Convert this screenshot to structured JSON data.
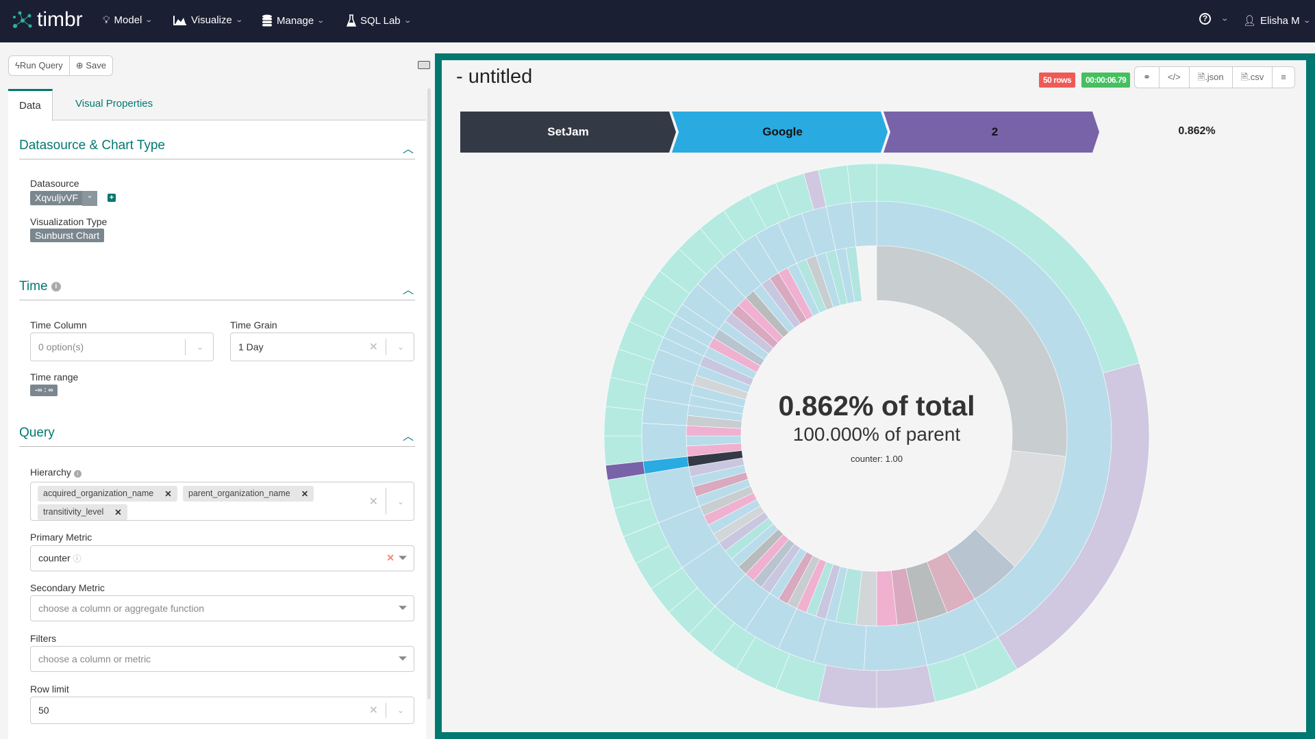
{
  "nav": {
    "brand": "timbr",
    "items": [
      {
        "label": "Model",
        "icon": "lightbulb-icon"
      },
      {
        "label": "Visualize",
        "icon": "area-chart-icon"
      },
      {
        "label": "Manage",
        "icon": "database-icon"
      },
      {
        "label": "SQL Lab",
        "icon": "flask-icon"
      }
    ],
    "user": "Elisha M"
  },
  "toolbar": {
    "run": "Run Query",
    "save": "Save"
  },
  "tabs": {
    "data": "Data",
    "visual": "Visual Properties"
  },
  "sections": {
    "datasource": {
      "title": "Datasource & Chart Type",
      "ds_label": "Datasource",
      "ds_value": "XqvuljvVF",
      "viz_label": "Visualization Type",
      "viz_value": "Sunburst Chart"
    },
    "time": {
      "title": "Time",
      "col_label": "Time Column",
      "col_value": "0 option(s)",
      "grain_label": "Time Grain",
      "grain_value": "1 Day",
      "range_label": "Time range",
      "range_value": "-∞ : ∞"
    },
    "query": {
      "title": "Query",
      "hierarchy_label": "Hierarchy",
      "hierarchy": [
        "acquired_organization_name",
        "parent_organization_name",
        "transitivity_level"
      ],
      "primary_label": "Primary Metric",
      "primary_value": "counter",
      "secondary_label": "Secondary Metric",
      "secondary_placeholder": "choose a column or aggregate function",
      "filters_label": "Filters",
      "filters_placeholder": "choose a column or metric",
      "rowlimit_label": "Row limit",
      "rowlimit_value": "50"
    }
  },
  "chart_header": {
    "title": "- untitled",
    "rows": "50 rows",
    "duration": "00:00:06.79",
    "json": ".json",
    "csv": ".csv"
  },
  "colors": {
    "teal": "#00786f",
    "rows_badge": "#ee5a55",
    "time_badge": "#45bf5f"
  },
  "chart_data": {
    "type": "sunburst",
    "breadcrumb": [
      {
        "label": "SetJam",
        "color": "#343a45"
      },
      {
        "label": "Google",
        "color": "#29aae1"
      },
      {
        "label": "2",
        "color": "#7862a8"
      }
    ],
    "breadcrumb_percent": "0.862%",
    "center": {
      "total": "0.862% of total",
      "parent": "100.000% of parent",
      "metric": "counter: 1.00"
    },
    "total": 116,
    "highlight_unit_start": 84,
    "rings": [
      [
        [
          31,
          "#c8cdd0"
        ],
        [
          12,
          "#dadcde"
        ],
        [
          5,
          "#b8c4d0"
        ],
        [
          3,
          "#dbb0bf"
        ],
        [
          3,
          "#b9bcbc"
        ],
        [
          2,
          "#d8a9bf"
        ],
        [
          2,
          "#f0b0d0"
        ],
        [
          2,
          "#d3d6d8"
        ],
        [
          2,
          "#b2e5df"
        ],
        [
          1,
          "#b9dcea"
        ],
        [
          1,
          "#c9c6e0"
        ],
        [
          1,
          "#b2e5df"
        ],
        [
          1,
          "#f0b0d0"
        ],
        [
          1,
          "#c8cdd0"
        ],
        [
          1,
          "#d8a9bf"
        ],
        [
          1,
          "#b9dcea"
        ],
        [
          1,
          "#c9c6e0"
        ],
        [
          1,
          "#b8c4d0"
        ],
        [
          1,
          "#f0b0d0"
        ],
        [
          1,
          "#b9bcbc"
        ],
        [
          1,
          "#b9dcea"
        ],
        [
          1,
          "#b2e5df"
        ],
        [
          1,
          "#c9c6e0"
        ],
        [
          1,
          "#d3d6d8"
        ],
        [
          1,
          "#b9dcea"
        ],
        [
          1,
          "#f0b0d0"
        ],
        [
          1,
          "#c8cdd0"
        ],
        [
          1,
          "#b9dcea"
        ],
        [
          1,
          "#d8a9bf"
        ],
        [
          1,
          "#b9dcea"
        ],
        [
          1,
          "#c9c6e0"
        ],
        [
          1,
          "#343a45"
        ],
        [
          1,
          "#f0b0d0"
        ],
        [
          1,
          "#b9dcea"
        ],
        [
          1,
          "#f0b0d0"
        ],
        [
          1,
          "#c8cdd0"
        ],
        [
          1,
          "#b9dcea"
        ],
        [
          1,
          "#b9dcea"
        ],
        [
          1,
          "#b9dcea"
        ],
        [
          1,
          "#d3d6d8"
        ],
        [
          1,
          "#b9dcea"
        ],
        [
          1,
          "#c9c6e0"
        ],
        [
          1,
          "#b9dcea"
        ],
        [
          1,
          "#f0b0d0"
        ],
        [
          1,
          "#b8c4d0"
        ],
        [
          1,
          "#b9dcea"
        ],
        [
          1,
          "#c9c6e0"
        ],
        [
          1,
          "#d8a9bf"
        ],
        [
          1,
          "#f0b0d0"
        ],
        [
          1,
          "#b9bcbc"
        ],
        [
          1,
          "#b9dcea"
        ],
        [
          1,
          "#c9c6e0"
        ],
        [
          1,
          "#d8a9bf"
        ],
        [
          1,
          "#f0b0d0"
        ],
        [
          1,
          "#b9dcea"
        ],
        [
          1,
          "#b2e5df"
        ],
        [
          1,
          "#c8cdd0"
        ],
        [
          1,
          "#b9dcea"
        ],
        [
          1,
          "#b2e5df"
        ],
        [
          1,
          "#b9dcea"
        ],
        [
          1,
          "#b2e5df"
        ]
      ],
      [
        [
          48,
          "#b9dcea"
        ],
        [
          6,
          "#b9dcea"
        ],
        [
          5,
          "#b9dcea"
        ],
        [
          4,
          "#b9dcea"
        ],
        [
          3,
          "#b9dcea"
        ],
        [
          3,
          "#b9dcea"
        ],
        [
          3,
          "#b9dcea"
        ],
        [
          4,
          "#b9dcea"
        ],
        [
          4,
          "#b9dcea"
        ],
        [
          4,
          "#b9dcea"
        ],
        [
          1,
          "#29aae1"
        ],
        [
          3,
          "#b9dcea"
        ],
        [
          2,
          "#b9dcea"
        ],
        [
          2,
          "#b9dcea"
        ],
        [
          2,
          "#b9dcea"
        ],
        [
          1,
          "#b9dcea"
        ],
        [
          1,
          "#b9dcea"
        ],
        [
          1,
          "#b9dcea"
        ],
        [
          1,
          "#b9dcea"
        ],
        [
          2,
          "#b9dcea"
        ],
        [
          2,
          "#b9dcea"
        ],
        [
          2,
          "#b9dcea"
        ],
        [
          2,
          "#b9dcea"
        ],
        [
          2,
          "#b9dcea"
        ],
        [
          2,
          "#b9dcea"
        ],
        [
          2,
          "#b9dcea"
        ],
        [
          2,
          "#b9dcea"
        ],
        [
          2,
          "#b9dcea"
        ]
      ],
      [
        [
          24,
          "#b5eae1"
        ],
        [
          24,
          "#cfc8e0"
        ],
        [
          3,
          "#b5eae1"
        ],
        [
          3,
          "#b5eae1"
        ],
        [
          4,
          "#cfc8e0"
        ],
        [
          4,
          "#cfc8e0"
        ],
        [
          3,
          "#b5eae1"
        ],
        [
          3,
          "#b5eae1"
        ],
        [
          2,
          "#b5eae1"
        ],
        [
          2,
          "#b5eae1"
        ],
        [
          2,
          "#b5eae1"
        ],
        [
          2,
          "#b5eae1"
        ],
        [
          2,
          "#b5eae1"
        ],
        [
          2,
          "#b5eae1"
        ],
        [
          2,
          "#b5eae1"
        ],
        [
          2,
          "#b5eae1"
        ],
        [
          1,
          "#7862a8"
        ],
        [
          2,
          "#b5eae1"
        ],
        [
          2,
          "#b5eae1"
        ],
        [
          2,
          "#b5eae1"
        ],
        [
          2,
          "#b5eae1"
        ],
        [
          2,
          "#b5eae1"
        ],
        [
          2,
          "#b5eae1"
        ],
        [
          2,
          "#b5eae1"
        ],
        [
          2,
          "#b5eae1"
        ],
        [
          2,
          "#b5eae1"
        ],
        [
          2,
          "#b5eae1"
        ],
        [
          2,
          "#b5eae1"
        ],
        [
          2,
          "#b5eae1"
        ],
        [
          2,
          "#b5eae1"
        ],
        [
          1,
          "#cfc8e0"
        ],
        [
          2,
          "#b5eae1"
        ],
        [
          2,
          "#b5eae1"
        ]
      ]
    ]
  }
}
